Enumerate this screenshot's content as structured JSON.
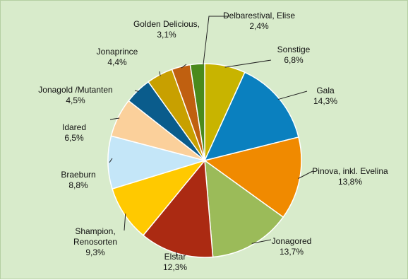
{
  "chart_data": {
    "type": "pie",
    "start_angle_deg": 0,
    "direction": "clockwise",
    "slices": [
      {
        "label": [
          "Sonstige"
        ],
        "value_label": "6,8%",
        "value": 6.8,
        "color": "#c8b400"
      },
      {
        "label": [
          "Gala"
        ],
        "value_label": "14,3%",
        "value": 14.3,
        "color": "#0a80bf"
      },
      {
        "label": [
          "Pinova, inkl. Evelina"
        ],
        "value_label": "13,8%",
        "value": 13.8,
        "color": "#f08a00"
      },
      {
        "label": [
          "Jonagored"
        ],
        "value_label": "13,7%",
        "value": 13.7,
        "color": "#9bbb59"
      },
      {
        "label": [
          "Elstar"
        ],
        "value_label": "12,3%",
        "value": 12.3,
        "color": "#ab2a12"
      },
      {
        "label": [
          "Shampion,",
          "Renosorten"
        ],
        "value_label": "9,3%",
        "value": 9.3,
        "color": "#ffc900"
      },
      {
        "label": [
          "Braeburn"
        ],
        "value_label": "8,8%",
        "value": 8.8,
        "color": "#c4e6f8"
      },
      {
        "label": [
          "Idared"
        ],
        "value_label": "6,5%",
        "value": 6.5,
        "color": "#fbd09b"
      },
      {
        "label": [
          "Jonagold /Mutanten"
        ],
        "value_label": "4,5%",
        "value": 4.5,
        "color": "#0a5c8c"
      },
      {
        "label": [
          "Jonaprince"
        ],
        "value_label": "4,4%",
        "value": 4.4,
        "color": "#c8a000"
      },
      {
        "label": [
          "Golden Delicious,"
        ],
        "value_label": "3,1%",
        "value": 3.1,
        "color": "#c06010"
      },
      {
        "label": [
          "Delbarestival, Elise"
        ],
        "value_label": "2,4%",
        "value": 2.4,
        "color": "#4a8a1c"
      }
    ]
  }
}
